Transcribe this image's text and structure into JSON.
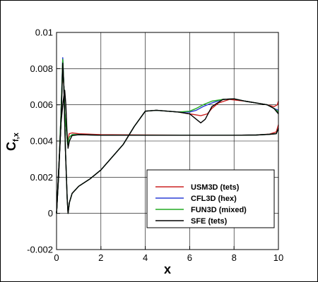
{
  "chart_data": {
    "type": "line",
    "xlabel": "x",
    "ylabel": "C",
    "ylabel_sub": "f,x",
    "xlim": [
      0,
      10
    ],
    "ylim": [
      -0.002,
      0.01
    ],
    "xticks": [
      0,
      2,
      4,
      6,
      8,
      10
    ],
    "yticks": [
      -0.002,
      0,
      0.002,
      0.004,
      0.006,
      0.008,
      0.01
    ],
    "xtick_labels": [
      "0",
      "2",
      "4",
      "6",
      "8",
      "10"
    ],
    "ytick_labels": [
      "-0.002",
      "0",
      "0.002",
      "0.004",
      "0.006",
      "0.008",
      "0.01"
    ],
    "grid": true,
    "legend_position": "bottom-right",
    "series": [
      {
        "name": "USM3D (tets)",
        "color": "#cc2222",
        "curves": [
          [
            [
              0.0,
              0.0
            ],
            [
              0.1,
              0.0022
            ],
            [
              0.2,
              0.0055
            ],
            [
              0.28,
              0.0082
            ],
            [
              0.33,
              0.007
            ],
            [
              0.38,
              0.0055
            ],
            [
              0.43,
              0.0048
            ],
            [
              0.5,
              0.0039
            ],
            [
              0.57,
              0.0044
            ],
            [
              0.7,
              0.00445
            ],
            [
              1.0,
              0.0044
            ],
            [
              2.0,
              0.00435
            ],
            [
              4.0,
              0.00433
            ],
            [
              6.0,
              0.00432
            ],
            [
              8.0,
              0.00432
            ],
            [
              9.0,
              0.00433
            ],
            [
              9.6,
              0.00438
            ],
            [
              9.9,
              0.0045
            ],
            [
              10.0,
              0.0049
            ]
          ],
          [
            [
              0.0,
              0.0
            ],
            [
              0.12,
              0.003
            ],
            [
              0.2,
              0.005
            ],
            [
              0.28,
              0.0084
            ],
            [
              0.33,
              0.007
            ],
            [
              0.4,
              0.0035
            ],
            [
              0.48,
              0.0008
            ],
            [
              0.52,
              0.0
            ],
            [
              0.58,
              0.0006
            ],
            [
              0.7,
              0.0011
            ],
            [
              1.0,
              0.0015
            ],
            [
              1.5,
              0.0019
            ],
            [
              2.0,
              0.0024
            ],
            [
              2.5,
              0.0031
            ],
            [
              3.0,
              0.0038
            ],
            [
              3.5,
              0.0048
            ],
            [
              4.0,
              0.00565
            ],
            [
              4.5,
              0.0057
            ],
            [
              5.0,
              0.00565
            ],
            [
              5.5,
              0.0056
            ],
            [
              6.0,
              0.0055
            ],
            [
              6.5,
              0.0054
            ],
            [
              6.8,
              0.0055
            ],
            [
              7.0,
              0.0058
            ],
            [
              7.3,
              0.0061
            ],
            [
              7.8,
              0.0063
            ],
            [
              8.5,
              0.0062
            ],
            [
              9.0,
              0.0061
            ],
            [
              9.5,
              0.006
            ],
            [
              9.8,
              0.0059
            ],
            [
              9.95,
              0.006
            ],
            [
              10.0,
              0.0062
            ]
          ]
        ]
      },
      {
        "name": "CFL3D (hex)",
        "color": "#2b3fd6",
        "curves": [
          [
            [
              0.0,
              0.0
            ],
            [
              0.1,
              0.0022
            ],
            [
              0.2,
              0.0055
            ],
            [
              0.28,
              0.0086
            ],
            [
              0.33,
              0.007
            ],
            [
              0.38,
              0.0055
            ],
            [
              0.43,
              0.0048
            ],
            [
              0.5,
              0.0038
            ],
            [
              0.57,
              0.0042
            ],
            [
              0.7,
              0.00435
            ],
            [
              1.0,
              0.00435
            ],
            [
              2.0,
              0.00432
            ],
            [
              4.0,
              0.00432
            ],
            [
              6.0,
              0.00432
            ],
            [
              8.0,
              0.00432
            ],
            [
              9.0,
              0.00433
            ],
            [
              9.6,
              0.00437
            ],
            [
              9.9,
              0.0044
            ],
            [
              10.0,
              0.0047
            ]
          ],
          [
            [
              0.0,
              0.0
            ],
            [
              0.12,
              0.003
            ],
            [
              0.2,
              0.005
            ],
            [
              0.28,
              0.0086
            ],
            [
              0.33,
              0.007
            ],
            [
              0.4,
              0.0035
            ],
            [
              0.48,
              0.0008
            ],
            [
              0.52,
              0.0
            ],
            [
              0.58,
              0.0006
            ],
            [
              0.7,
              0.0011
            ],
            [
              1.0,
              0.0015
            ],
            [
              1.5,
              0.0019
            ],
            [
              2.0,
              0.0024
            ],
            [
              2.5,
              0.0031
            ],
            [
              3.0,
              0.0038
            ],
            [
              3.5,
              0.0048
            ],
            [
              4.0,
              0.00565
            ],
            [
              4.5,
              0.0057
            ],
            [
              5.0,
              0.00565
            ],
            [
              5.5,
              0.0056
            ],
            [
              6.0,
              0.0056
            ],
            [
              6.3,
              0.0057
            ],
            [
              6.6,
              0.0059
            ],
            [
              7.0,
              0.0061
            ],
            [
              7.5,
              0.0063
            ],
            [
              8.0,
              0.00633
            ],
            [
              8.5,
              0.0062
            ],
            [
              9.0,
              0.0061
            ],
            [
              9.5,
              0.006
            ],
            [
              9.8,
              0.0058
            ],
            [
              10.0,
              0.0057
            ]
          ]
        ]
      },
      {
        "name": "FUN3D (mixed)",
        "color": "#22aa22",
        "curves": [
          [
            [
              0.0,
              0.0
            ],
            [
              0.1,
              0.0022
            ],
            [
              0.2,
              0.0055
            ],
            [
              0.28,
              0.0085
            ],
            [
              0.33,
              0.007
            ],
            [
              0.38,
              0.0055
            ],
            [
              0.43,
              0.0048
            ],
            [
              0.5,
              0.0038
            ],
            [
              0.57,
              0.0042
            ],
            [
              0.7,
              0.00435
            ],
            [
              1.0,
              0.00435
            ],
            [
              2.0,
              0.00432
            ],
            [
              4.0,
              0.00432
            ],
            [
              6.0,
              0.00432
            ],
            [
              8.0,
              0.00432
            ],
            [
              9.0,
              0.00433
            ],
            [
              9.6,
              0.00437
            ],
            [
              9.9,
              0.0044
            ],
            [
              10.0,
              0.0047
            ]
          ],
          [
            [
              0.0,
              0.0
            ],
            [
              0.12,
              0.003
            ],
            [
              0.2,
              0.005
            ],
            [
              0.28,
              0.0085
            ],
            [
              0.33,
              0.007
            ],
            [
              0.4,
              0.0035
            ],
            [
              0.48,
              0.0008
            ],
            [
              0.52,
              0.0
            ],
            [
              0.58,
              0.0006
            ],
            [
              0.7,
              0.0011
            ],
            [
              1.0,
              0.0015
            ],
            [
              1.5,
              0.0019
            ],
            [
              2.0,
              0.0024
            ],
            [
              2.5,
              0.0031
            ],
            [
              3.0,
              0.0038
            ],
            [
              3.5,
              0.0048
            ],
            [
              4.0,
              0.00565
            ],
            [
              4.5,
              0.0057
            ],
            [
              5.0,
              0.00565
            ],
            [
              5.5,
              0.0056
            ],
            [
              6.0,
              0.00565
            ],
            [
              6.3,
              0.0058
            ],
            [
              6.6,
              0.006
            ],
            [
              7.0,
              0.0062
            ],
            [
              7.5,
              0.0063
            ],
            [
              8.0,
              0.00633
            ],
            [
              8.5,
              0.0062
            ],
            [
              9.0,
              0.0061
            ],
            [
              9.5,
              0.006
            ],
            [
              9.8,
              0.0058
            ],
            [
              10.0,
              0.0056
            ]
          ]
        ]
      },
      {
        "name": "SFE (tets)",
        "color": "#000000",
        "curves": [
          [
            [
              0.0,
              0.0
            ],
            [
              0.1,
              0.0022
            ],
            [
              0.2,
              0.005
            ],
            [
              0.3,
              0.0062
            ],
            [
              0.37,
              0.0068
            ],
            [
              0.42,
              0.006
            ],
            [
              0.47,
              0.0045
            ],
            [
              0.52,
              0.0036
            ],
            [
              0.58,
              0.004
            ],
            [
              0.7,
              0.0043
            ],
            [
              1.0,
              0.00435
            ],
            [
              2.0,
              0.00432
            ],
            [
              4.0,
              0.00432
            ],
            [
              6.0,
              0.00432
            ],
            [
              8.0,
              0.00432
            ],
            [
              9.0,
              0.00433
            ],
            [
              9.6,
              0.00437
            ],
            [
              9.9,
              0.0044
            ],
            [
              10.0,
              0.0047
            ]
          ],
          [
            [
              0.0,
              0.0
            ],
            [
              0.12,
              0.003
            ],
            [
              0.2,
              0.005
            ],
            [
              0.28,
              0.0083
            ],
            [
              0.33,
              0.007
            ],
            [
              0.4,
              0.0035
            ],
            [
              0.48,
              0.0008
            ],
            [
              0.52,
              0.0
            ],
            [
              0.58,
              0.0006
            ],
            [
              0.7,
              0.0011
            ],
            [
              1.0,
              0.0015
            ],
            [
              1.5,
              0.0019
            ],
            [
              2.0,
              0.0024
            ],
            [
              2.5,
              0.0031
            ],
            [
              3.0,
              0.0038
            ],
            [
              3.5,
              0.0048
            ],
            [
              4.0,
              0.00565
            ],
            [
              4.5,
              0.0057
            ],
            [
              5.0,
              0.00565
            ],
            [
              5.5,
              0.0056
            ],
            [
              6.0,
              0.0055
            ],
            [
              6.3,
              0.0052
            ],
            [
              6.5,
              0.005
            ],
            [
              6.7,
              0.0052
            ],
            [
              7.0,
              0.0059
            ],
            [
              7.5,
              0.0063
            ],
            [
              8.0,
              0.00633
            ],
            [
              8.5,
              0.0062
            ],
            [
              9.0,
              0.0061
            ],
            [
              9.5,
              0.006
            ],
            [
              9.8,
              0.0058
            ],
            [
              10.0,
              0.0055
            ]
          ]
        ]
      }
    ]
  }
}
